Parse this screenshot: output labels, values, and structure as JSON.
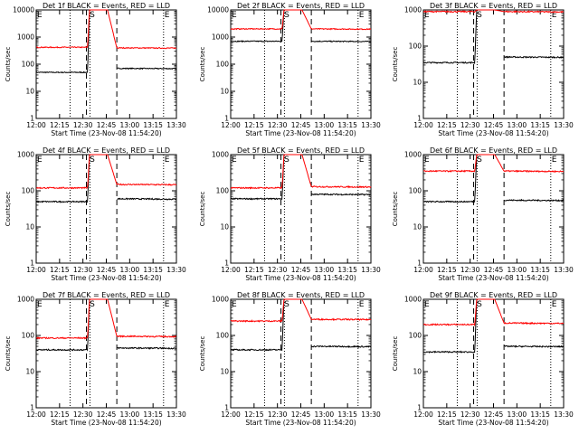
{
  "figure": {
    "ylabel": "Counts/sec",
    "xlabel": "Start Time (23-Nov-08 11:54:20)"
  },
  "chart_data": [
    {
      "type": "line",
      "title": "Det 1f BLACK = Events, RED = LLD",
      "xlabel": "Start Time (23-Nov-08 11:54:20)",
      "ylabel": "Counts/sec",
      "yscale": "log",
      "ylim": [
        1,
        10000
      ],
      "x_ticks": [
        "12:00",
        "12:15",
        "12:30",
        "12:45",
        "13:00",
        "13:15",
        "13:30"
      ],
      "y_ticks": [
        "1",
        "10",
        "100",
        "1000",
        "10000"
      ],
      "markers": [
        {
          "label": "E",
          "pos": 0
        },
        {
          "label": "S",
          "pos": 2.25
        },
        {
          "label": "E",
          "pos": 5.45
        }
      ],
      "dotted_lines": [
        1.45,
        2.3,
        5.45
      ],
      "dashed_lines": [
        2.15,
        3.45
      ],
      "series": [
        {
          "name": "Events",
          "color": "#000000",
          "before": 50,
          "after": 70
        },
        {
          "name": "LLD",
          "color": "#ff0000",
          "before": 420,
          "after": 400
        }
      ]
    },
    {
      "type": "line",
      "title": "Det 2f BLACK = Events, RED = LLD",
      "xlabel": "Start Time (23-Nov-08 11:54:20)",
      "ylabel": "Counts/sec",
      "yscale": "log",
      "ylim": [
        1,
        10000
      ],
      "x_ticks": [
        "12:00",
        "12:15",
        "12:30",
        "12:45",
        "13:00",
        "13:15",
        "13:30"
      ],
      "y_ticks": [
        "1",
        "10",
        "100",
        "1000",
        "10000"
      ],
      "markers": [
        {
          "label": "E",
          "pos": 0
        },
        {
          "label": "S",
          "pos": 2.25
        },
        {
          "label": "E",
          "pos": 5.45
        }
      ],
      "dotted_lines": [
        1.45,
        2.3,
        5.45
      ],
      "dashed_lines": [
        2.15,
        3.45
      ],
      "series": [
        {
          "name": "Events",
          "color": "#000000",
          "before": 700,
          "after": 700
        },
        {
          "name": "LLD",
          "color": "#ff0000",
          "before": 2000,
          "after": 2000
        }
      ]
    },
    {
      "type": "line",
      "title": "Det 3f BLACK = Events, RED = LLD",
      "xlabel": "Start Time (23-Nov-08 11:54:20)",
      "ylabel": "Counts/sec",
      "yscale": "log",
      "ylim": [
        1,
        1000
      ],
      "x_ticks": [
        "12:00",
        "12:15",
        "12:30",
        "12:45",
        "13:00",
        "13:15",
        "13:30"
      ],
      "y_ticks": [
        "1",
        "10",
        "100",
        "1000"
      ],
      "markers": [
        {
          "label": "E",
          "pos": 0
        },
        {
          "label": "S",
          "pos": 2.25
        },
        {
          "label": "E",
          "pos": 5.45
        }
      ],
      "dotted_lines": [
        1.45,
        2.3,
        5.45
      ],
      "dashed_lines": [
        2.15,
        3.45
      ],
      "series": [
        {
          "name": "Events",
          "color": "#000000",
          "before": 35,
          "after": 50
        },
        {
          "name": "LLD",
          "color": "#ff0000",
          "before": 900,
          "after": 900
        }
      ]
    },
    {
      "type": "line",
      "title": "Det 4f BLACK = Events, RED = LLD",
      "xlabel": "Start Time (23-Nov-08 11:54:20)",
      "ylabel": "Counts/sec",
      "yscale": "log",
      "ylim": [
        1,
        1000
      ],
      "x_ticks": [
        "12:00",
        "12:15",
        "12:30",
        "12:45",
        "13:00",
        "13:15",
        "13:30"
      ],
      "y_ticks": [
        "1",
        "10",
        "100",
        "1000"
      ],
      "markers": [
        {
          "label": "E",
          "pos": 0
        },
        {
          "label": "S",
          "pos": 2.25
        },
        {
          "label": "E",
          "pos": 5.45
        }
      ],
      "dotted_lines": [
        1.45,
        2.3,
        5.45
      ],
      "dashed_lines": [
        2.15,
        3.45
      ],
      "series": [
        {
          "name": "Events",
          "color": "#000000",
          "before": 50,
          "after": 60
        },
        {
          "name": "LLD",
          "color": "#ff0000",
          "before": 120,
          "after": 150
        }
      ]
    },
    {
      "type": "line",
      "title": "Det 5f BLACK = Events, RED = LLD",
      "xlabel": "Start Time (23-Nov-08 11:54:20)",
      "ylabel": "Counts/sec",
      "yscale": "log",
      "ylim": [
        1,
        1000
      ],
      "x_ticks": [
        "12:00",
        "12:15",
        "12:30",
        "12:45",
        "13:00",
        "13:15",
        "13:30"
      ],
      "y_ticks": [
        "1",
        "10",
        "100",
        "1000"
      ],
      "markers": [
        {
          "label": "E",
          "pos": 0
        },
        {
          "label": "S",
          "pos": 2.25
        },
        {
          "label": "E",
          "pos": 5.45
        }
      ],
      "dotted_lines": [
        1.45,
        2.3,
        5.45
      ],
      "dashed_lines": [
        2.15,
        3.45
      ],
      "series": [
        {
          "name": "Events",
          "color": "#000000",
          "before": 60,
          "after": 80
        },
        {
          "name": "LLD",
          "color": "#ff0000",
          "before": 120,
          "after": 130
        }
      ]
    },
    {
      "type": "line",
      "title": "Det 6f BLACK = Events, RED = LLD",
      "xlabel": "Start Time (23-Nov-08 11:54:20)",
      "ylabel": "Counts/sec",
      "yscale": "log",
      "ylim": [
        1,
        1000
      ],
      "x_ticks": [
        "12:00",
        "12:15",
        "12:30",
        "12:45",
        "13:00",
        "13:15",
        "13:30"
      ],
      "y_ticks": [
        "1",
        "10",
        "100",
        "1000"
      ],
      "markers": [
        {
          "label": "E",
          "pos": 0
        },
        {
          "label": "S",
          "pos": 2.25
        },
        {
          "label": "E",
          "pos": 5.45
        }
      ],
      "dotted_lines": [
        1.45,
        2.3,
        5.45
      ],
      "dashed_lines": [
        2.15,
        3.45
      ],
      "series": [
        {
          "name": "Events",
          "color": "#000000",
          "before": 50,
          "after": 55
        },
        {
          "name": "LLD",
          "color": "#ff0000",
          "before": 350,
          "after": 350
        }
      ]
    },
    {
      "type": "line",
      "title": "Det 7f BLACK = Events, RED = LLD",
      "xlabel": "Start Time (23-Nov-08 11:54:20)",
      "ylabel": "Counts/sec",
      "yscale": "log",
      "ylim": [
        1,
        1000
      ],
      "x_ticks": [
        "12:00",
        "12:15",
        "12:30",
        "12:45",
        "13:00",
        "13:15",
        "13:30"
      ],
      "y_ticks": [
        "1",
        "10",
        "100",
        "1000"
      ],
      "markers": [
        {
          "label": "E",
          "pos": 0
        },
        {
          "label": "S",
          "pos": 2.25
        },
        {
          "label": "E",
          "pos": 5.45
        }
      ],
      "dotted_lines": [
        1.45,
        2.3,
        5.45
      ],
      "dashed_lines": [
        2.15,
        3.45
      ],
      "series": [
        {
          "name": "Events",
          "color": "#000000",
          "before": 40,
          "after": 45
        },
        {
          "name": "LLD",
          "color": "#ff0000",
          "before": 85,
          "after": 95
        }
      ]
    },
    {
      "type": "line",
      "title": "Det 8f BLACK = Events, RED = LLD",
      "xlabel": "Start Time (23-Nov-08 11:54:20)",
      "ylabel": "Counts/sec",
      "yscale": "log",
      "ylim": [
        1,
        1000
      ],
      "x_ticks": [
        "12:00",
        "12:15",
        "12:30",
        "12:45",
        "13:00",
        "13:15",
        "13:30"
      ],
      "y_ticks": [
        "1",
        "10",
        "100",
        "1000"
      ],
      "markers": [
        {
          "label": "E",
          "pos": 0
        },
        {
          "label": "S",
          "pos": 2.25
        },
        {
          "label": "E",
          "pos": 5.45
        }
      ],
      "dotted_lines": [
        1.45,
        2.3,
        5.45
      ],
      "dashed_lines": [
        2.15,
        3.45
      ],
      "series": [
        {
          "name": "Events",
          "color": "#000000",
          "before": 40,
          "after": 50
        },
        {
          "name": "LLD",
          "color": "#ff0000",
          "before": 250,
          "after": 280
        }
      ]
    },
    {
      "type": "line",
      "title": "Det 9f BLACK = Events, RED = LLD",
      "xlabel": "Start Time (23-Nov-08 11:54:20)",
      "ylabel": "Counts/sec",
      "yscale": "log",
      "ylim": [
        1,
        1000
      ],
      "x_ticks": [
        "12:00",
        "12:15",
        "12:30",
        "12:45",
        "13:00",
        "13:15",
        "13:30"
      ],
      "y_ticks": [
        "1",
        "10",
        "100",
        "1000"
      ],
      "markers": [
        {
          "label": "E",
          "pos": 0
        },
        {
          "label": "S",
          "pos": 2.25
        },
        {
          "label": "E",
          "pos": 5.45
        }
      ],
      "dotted_lines": [
        1.45,
        2.3,
        5.45
      ],
      "dashed_lines": [
        2.15,
        3.45
      ],
      "series": [
        {
          "name": "Events",
          "color": "#000000",
          "before": 35,
          "after": 50
        },
        {
          "name": "LLD",
          "color": "#ff0000",
          "before": 200,
          "after": 220
        }
      ]
    }
  ]
}
